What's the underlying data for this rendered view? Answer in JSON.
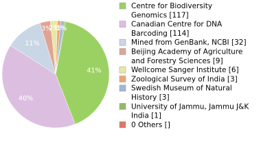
{
  "chart_data": {
    "type": "pie",
    "labels": [
      [
        "Centre for Biodiversity",
        "Genomics [117]"
      ],
      [
        "Canadian Centre for DNA",
        "Barcoding [114]"
      ],
      [
        "Mined from GenBank, NCBI [32]"
      ],
      [
        "Beijing Academy of Agriculture",
        "and Forestry Sciences [9]"
      ],
      [
        "Wellcome Sanger Institute [6]"
      ],
      [
        "Zoological Survey of India [3]"
      ],
      [
        "Swedish Museum of Natural",
        "History [3]"
      ],
      [
        "University of Jammu, Jammu J&K",
        "India [1]"
      ],
      [
        "0 Others []"
      ]
    ],
    "values": [
      117,
      114,
      32,
      9,
      6,
      3,
      3,
      1,
      0
    ],
    "value_labels": [
      "41%",
      "40%",
      "11%",
      "3%",
      "2%",
      "1%",
      "1%",
      null,
      null
    ],
    "colors": [
      "#9bd162",
      "#dcbfe0",
      "#c9d6e5",
      "#e0a394",
      "#e7e8a3",
      "#f0a46f",
      "#9fb7da",
      "#92bc62",
      "#d97a66"
    ]
  }
}
